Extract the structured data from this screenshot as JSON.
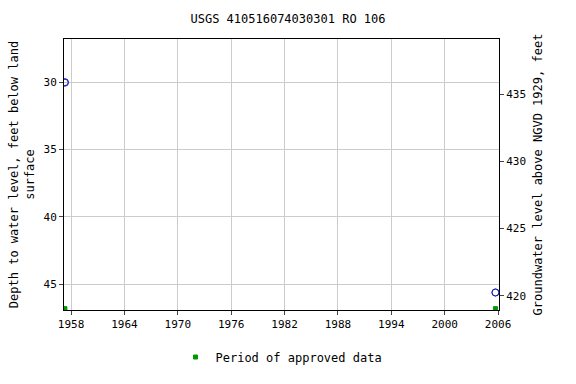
{
  "chart_data": {
    "type": "scatter",
    "title": "USGS 410516074030301 RO 106",
    "y_label": [
      "Depth to water level, feet below land",
      "surface"
    ],
    "y2_label": "Groundwater level above NGVD 1929, feet",
    "xlim": [
      1957.2,
      2006.1
    ],
    "xticks": [
      1958,
      1964,
      1970,
      1976,
      1982,
      1988,
      1994,
      2000,
      2006
    ],
    "ylim": [
      46.9,
      26.8
    ],
    "yticks": [
      30,
      35,
      40,
      45
    ],
    "y2lim": [
      418.95,
      439.1
    ],
    "y2ticks": [
      420,
      425,
      430,
      435
    ],
    "grid": true,
    "legend": "bottom",
    "series": [
      {
        "color": "#1f1fbf",
        "marker": "circle-open",
        "x": [
          1957.3,
          2005.7
        ],
        "values": [
          30.0,
          45.6
        ]
      },
      {
        "color": "#1f1fbf",
        "marker": "circle-open",
        "axis": "y2",
        "x": [
          1957.3,
          2005.7
        ],
        "values": [
          435.85,
          420.25
        ]
      },
      {
        "name": "Period of approved data",
        "color": "#009900",
        "marker": "square",
        "x": [
          1957.3,
          2005.7
        ],
        "values": [
          46.8,
          46.8
        ]
      }
    ]
  }
}
